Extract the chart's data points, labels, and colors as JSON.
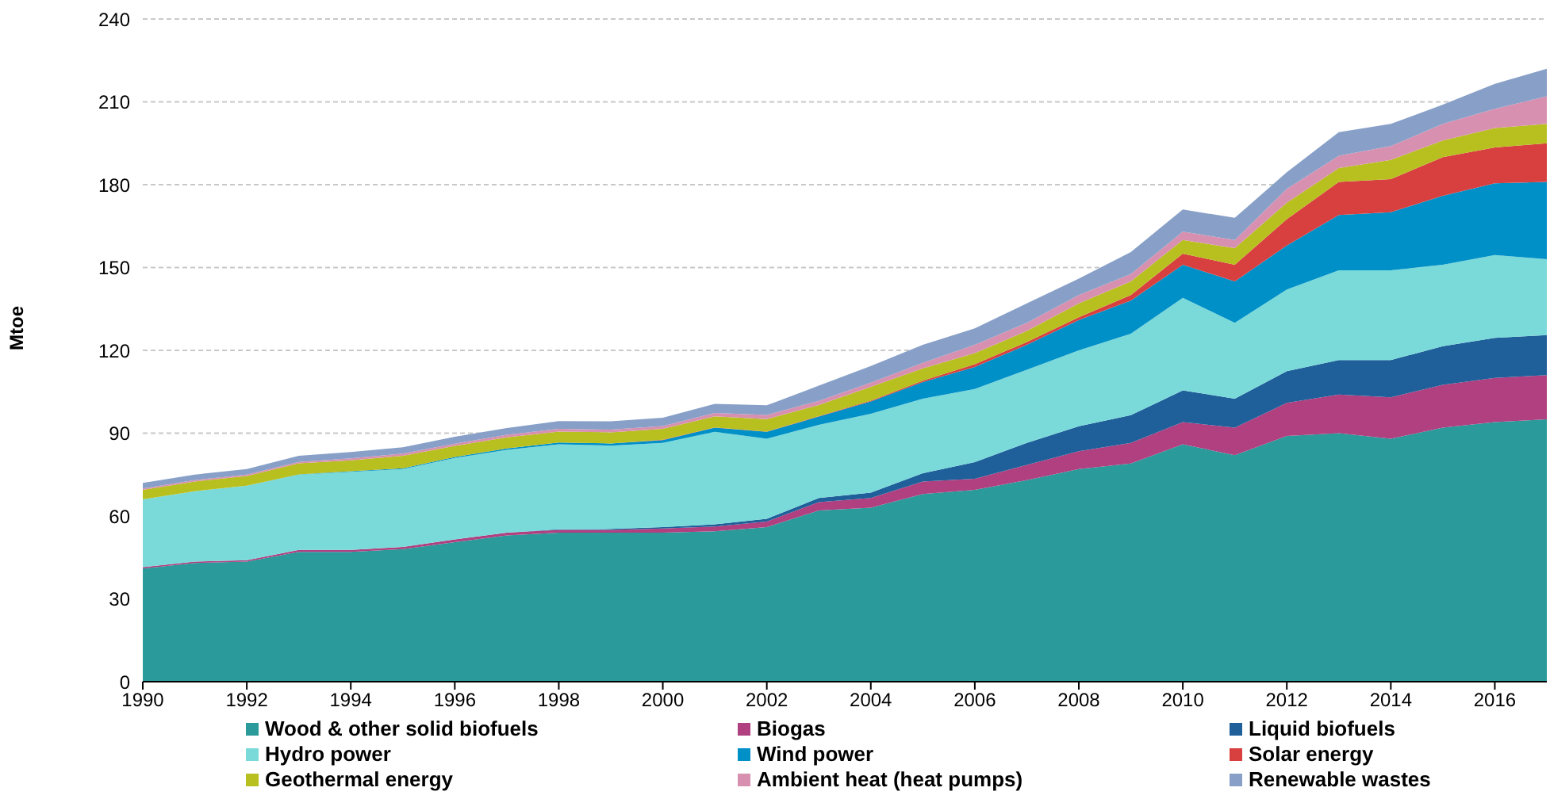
{
  "chart_data": {
    "type": "area",
    "stacked": true,
    "ylabel": "Mtoe",
    "x": [
      1990,
      1991,
      1992,
      1993,
      1994,
      1995,
      1996,
      1997,
      1998,
      1999,
      2000,
      2001,
      2002,
      2003,
      2004,
      2005,
      2006,
      2007,
      2008,
      2009,
      2010,
      2011,
      2012,
      2013,
      2014,
      2015,
      2016,
      2017
    ],
    "xlim": [
      1990,
      2017
    ],
    "xticks": [
      1990,
      1992,
      1994,
      1996,
      1998,
      2000,
      2002,
      2004,
      2006,
      2008,
      2010,
      2012,
      2014,
      2016
    ],
    "ylim": [
      0,
      240
    ],
    "yticks": [
      0,
      30,
      60,
      90,
      120,
      150,
      180,
      210,
      240
    ],
    "grid": "y",
    "legend": "bottom",
    "series": [
      {
        "name": "Wood & other solid biofuels",
        "color": "#2a9a9a",
        "values": [
          41,
          43,
          43.5,
          47,
          47,
          48,
          50.5,
          53,
          54,
          54,
          54,
          54.5,
          56,
          62,
          63,
          68,
          69.5,
          73,
          77,
          79,
          86,
          82,
          89,
          90,
          88,
          92,
          94,
          95
        ]
      },
      {
        "name": "Biogas",
        "color": "#b04080",
        "values": [
          0.5,
          0.5,
          0.5,
          0.7,
          0.7,
          0.8,
          1,
          1,
          1,
          1,
          1.5,
          1.7,
          2,
          3,
          3.5,
          4.5,
          4,
          5.5,
          6.5,
          7.5,
          8,
          10,
          12,
          14,
          15,
          15.5,
          16,
          16
        ]
      },
      {
        "name": "Liquid biofuels",
        "color": "#1f5f9a",
        "values": [
          0,
          0,
          0,
          0,
          0,
          0,
          0,
          0,
          0.2,
          0.3,
          0.5,
          0.8,
          1,
          1.5,
          2,
          3,
          6,
          8,
          9,
          10,
          11.5,
          10.5,
          11.5,
          12.5,
          13.5,
          14,
          14.5,
          14.5
        ]
      },
      {
        "name": "Hydro power",
        "color": "#7adada",
        "values": [
          24.5,
          25.5,
          27,
          27.3,
          28.3,
          28.2,
          29.5,
          30,
          30.8,
          30.2,
          30.5,
          33.5,
          29,
          26.5,
          28.5,
          27,
          26.5,
          26.5,
          27.5,
          29.5,
          33.5,
          27.5,
          29.5,
          32.5,
          32.5,
          29.5,
          30,
          27.5
        ]
      },
      {
        "name": "Wind power",
        "color": "#0090c8",
        "values": [
          0,
          0,
          0,
          0.1,
          0.2,
          0.3,
          0.4,
          0.5,
          0.6,
          0.8,
          1,
          1.5,
          2.5,
          3,
          4.5,
          6,
          8,
          9,
          11,
          12,
          12,
          15,
          16,
          20,
          21,
          25,
          26,
          28
        ]
      },
      {
        "name": "Solar energy",
        "color": "#d84040",
        "values": [
          0,
          0,
          0,
          0,
          0,
          0,
          0,
          0,
          0,
          0,
          0.1,
          0.1,
          0.1,
          0.2,
          0.3,
          0.5,
          1,
          1,
          1,
          2,
          4,
          6,
          9.5,
          12,
          12,
          14,
          13,
          14
        ]
      },
      {
        "name": "Geothermal energy",
        "color": "#b8c020",
        "values": [
          3.5,
          3.5,
          3.5,
          4,
          4,
          4.5,
          4,
          4,
          4,
          4,
          4,
          4,
          4.5,
          4,
          5,
          4.5,
          4,
          4,
          5,
          5,
          5,
          6,
          6,
          5,
          7,
          6,
          7,
          7
        ]
      },
      {
        "name": "Ambient heat (heat pumps)",
        "color": "#d890b0",
        "values": [
          0.5,
          0.5,
          0.5,
          0.5,
          0.7,
          0.8,
          0.8,
          0.9,
          1,
          1,
          1,
          1.2,
          1.5,
          1.5,
          1.5,
          2,
          3,
          3,
          3,
          2.6,
          3,
          3,
          5,
          4.5,
          5,
          6,
          7,
          10
        ]
      },
      {
        "name": "Renewable wastes",
        "color": "#88a0c8",
        "values": [
          2,
          2,
          2,
          2.2,
          2.3,
          2.3,
          2.5,
          2.5,
          2.8,
          3,
          3,
          3.3,
          3.5,
          5.5,
          6,
          6.5,
          6,
          7,
          6,
          8,
          8,
          8,
          6,
          8.5,
          8,
          7,
          9,
          10
        ]
      }
    ]
  }
}
